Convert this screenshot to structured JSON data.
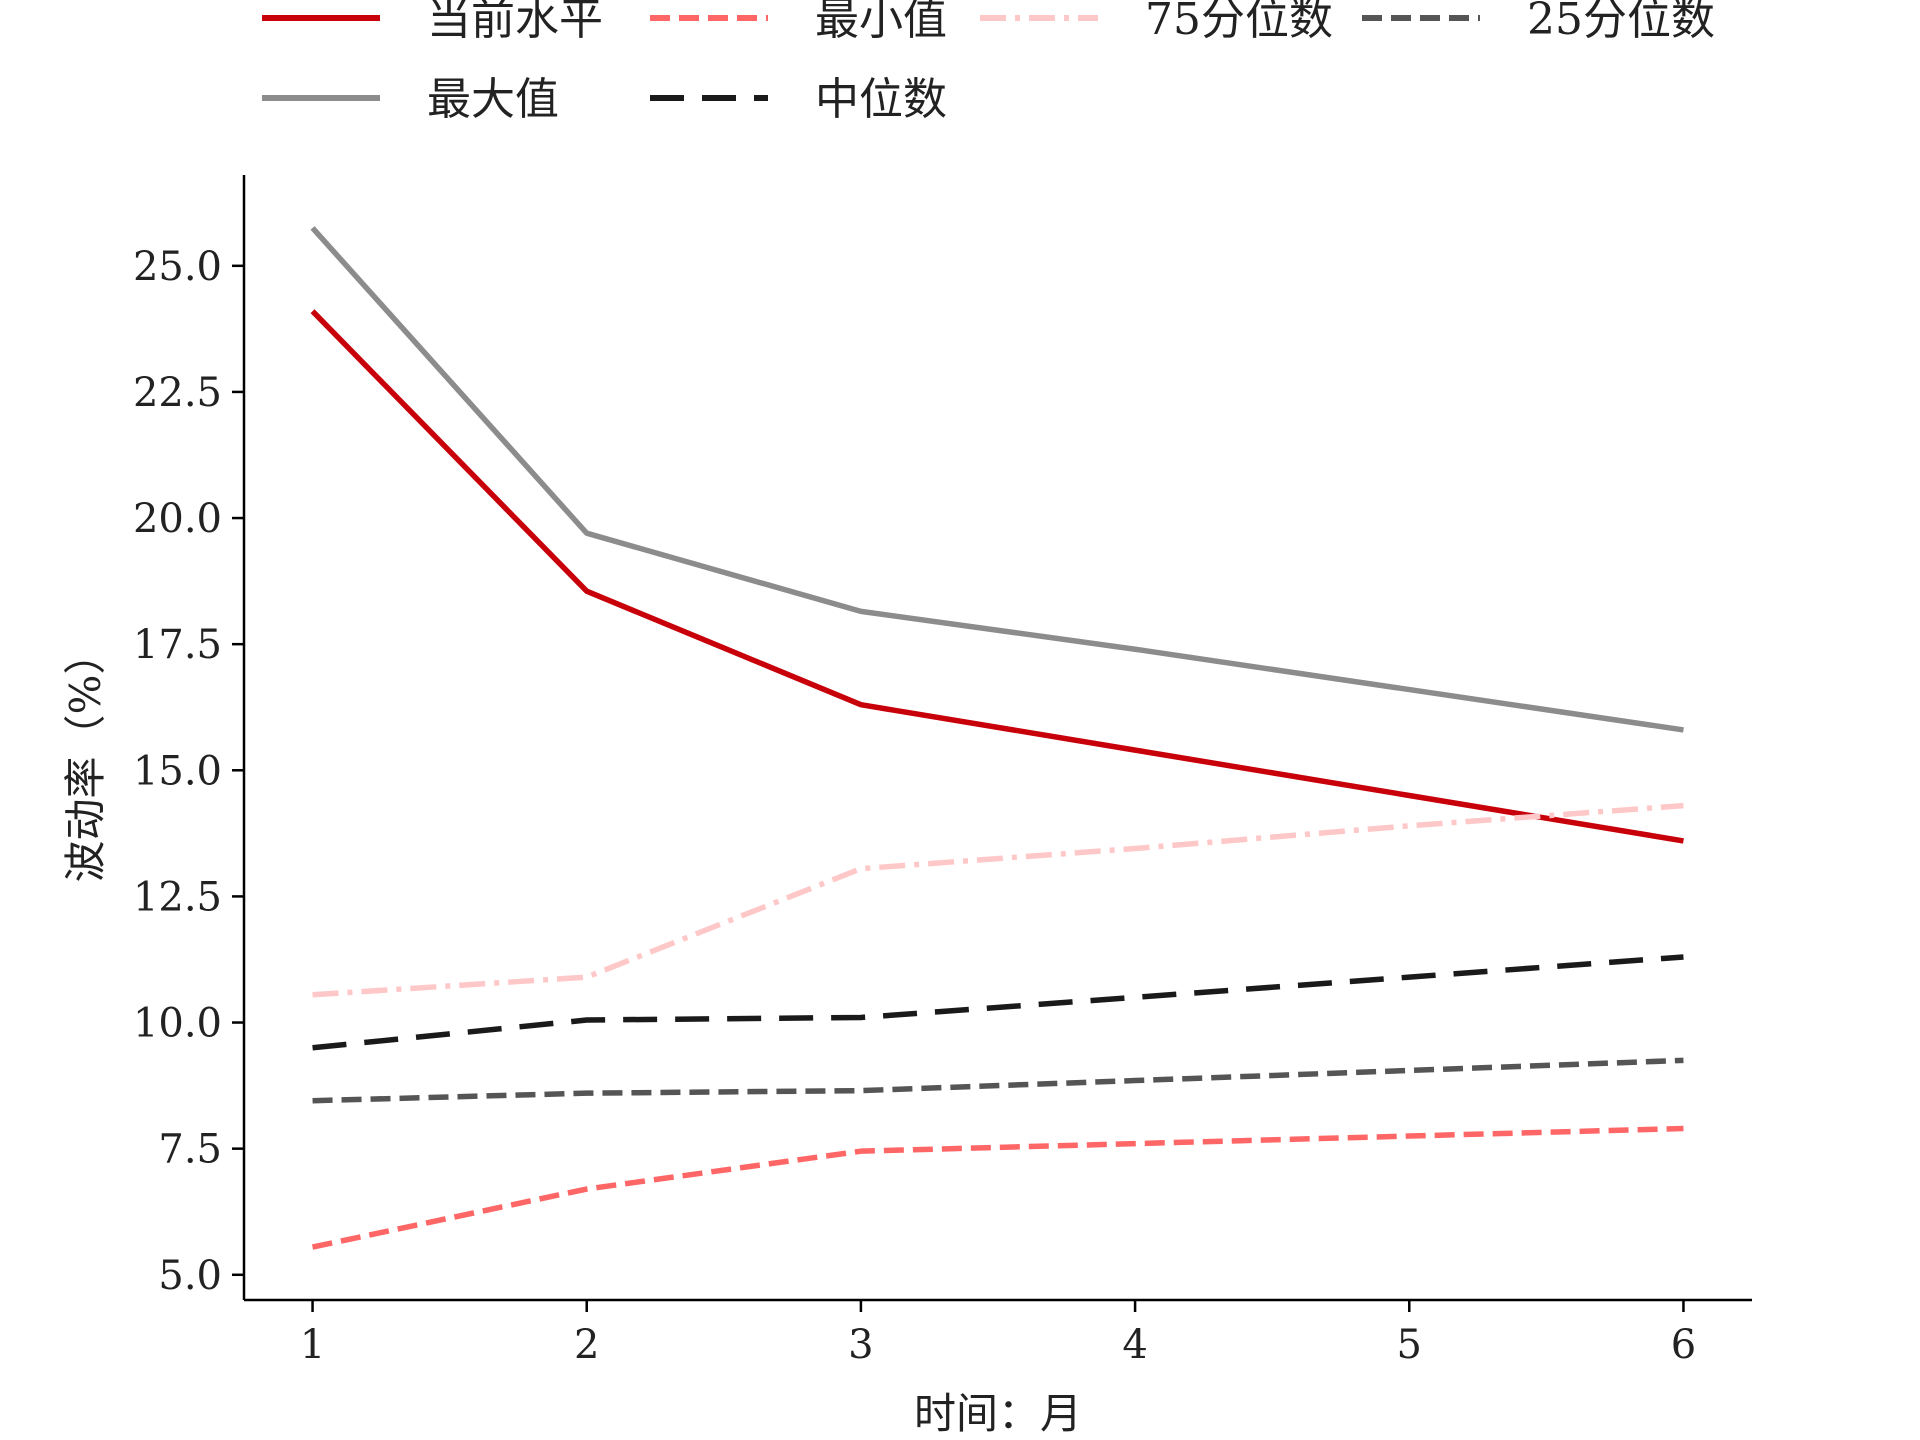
{
  "chart_data": {
    "type": "line",
    "title": "",
    "xlabel": "时间：月",
    "ylabel": "波动率（%）",
    "x": [
      1,
      2,
      3,
      4,
      5,
      6
    ],
    "xticks": [
      "1",
      "2",
      "3",
      "4",
      "5",
      "6"
    ],
    "yticks": [
      "5.0",
      "7.5",
      "10.0",
      "12.5",
      "15.0",
      "17.5",
      "20.0",
      "22.5",
      "25.0"
    ],
    "xlim": [
      0.75,
      6.25
    ],
    "ylim": [
      4.5,
      26.8
    ],
    "grid": false,
    "legend_position": "top",
    "series": [
      {
        "name": "当前水平",
        "color": "#c8000a",
        "dash": "solid",
        "values": [
          24.1,
          18.55,
          16.3,
          15.4,
          14.5,
          13.6
        ]
      },
      {
        "name": "最小值",
        "color": "#ff6666",
        "dash": "dashed",
        "values": [
          5.55,
          6.7,
          7.45,
          7.6,
          7.75,
          7.9
        ]
      },
      {
        "name": "75分位数",
        "color": "#ffc8c8",
        "dash": "dashdot",
        "values": [
          10.55,
          10.9,
          13.05,
          13.45,
          13.9,
          14.3
        ]
      },
      {
        "name": "25分位数",
        "color": "#555555",
        "dash": "dashed",
        "values": [
          8.45,
          8.6,
          8.65,
          8.85,
          9.05,
          9.25
        ]
      },
      {
        "name": "最大值",
        "color": "#8c8c8c",
        "dash": "solid",
        "values": [
          25.75,
          19.7,
          18.15,
          17.4,
          16.6,
          15.8
        ]
      },
      {
        "name": "中位数",
        "color": "#1a1a1a",
        "dash": "longdash",
        "values": [
          9.5,
          10.05,
          10.1,
          10.5,
          10.9,
          11.3
        ]
      }
    ]
  }
}
